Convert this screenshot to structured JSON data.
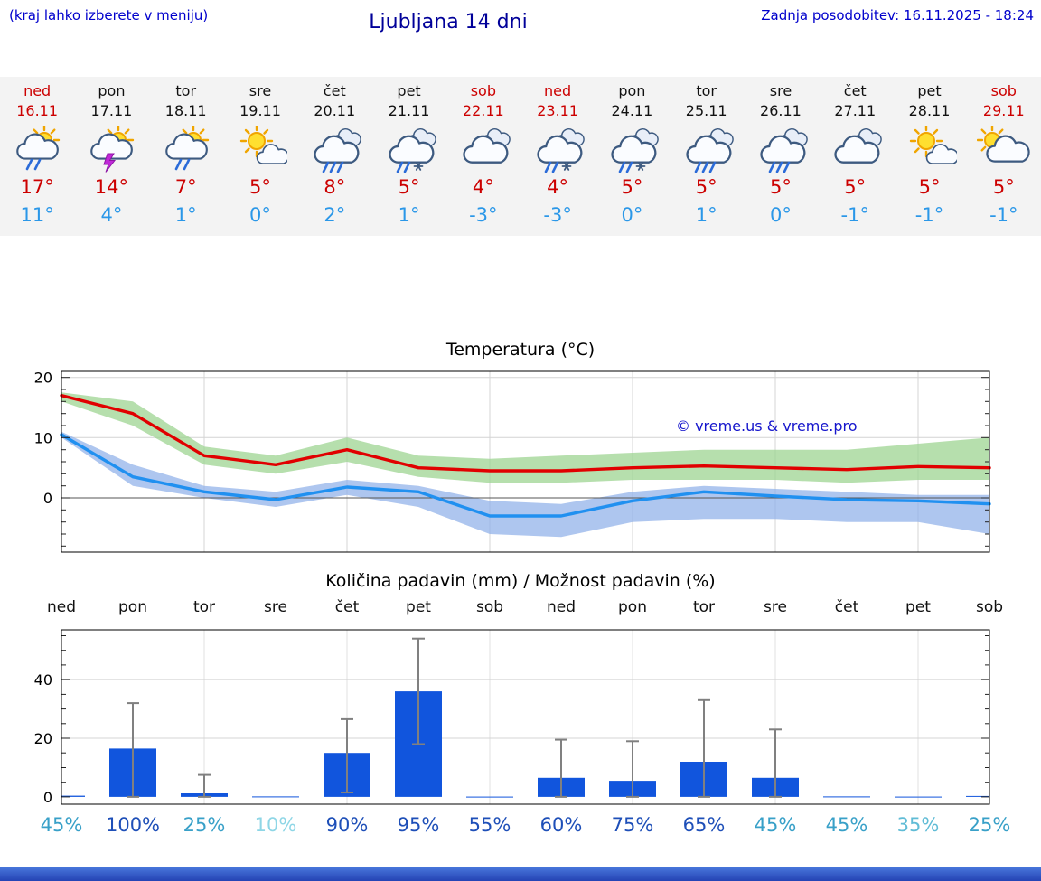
{
  "header": {
    "hint": "(kraj lahko izberete v meniju)",
    "title": "Ljubljana 14 dni",
    "updated": "Zadnja posodobitev: 16.11.2025 - 18:24"
  },
  "days": [
    {
      "name": "ned",
      "date": "16.11",
      "weekend": true,
      "icon": "sun-cloud-rain-icon",
      "hi": "17°",
      "lo": "11°"
    },
    {
      "name": "pon",
      "date": "17.11",
      "weekend": false,
      "icon": "sun-cloud-storm-icon",
      "hi": "14°",
      "lo": "4°"
    },
    {
      "name": "tor",
      "date": "18.11",
      "weekend": false,
      "icon": "sun-cloud-rain-icon",
      "hi": "7°",
      "lo": "1°"
    },
    {
      "name": "sre",
      "date": "19.11",
      "weekend": false,
      "icon": "sun-cloud-icon",
      "hi": "5°",
      "lo": "0°"
    },
    {
      "name": "čet",
      "date": "20.11",
      "weekend": false,
      "icon": "cloud-rain-icon",
      "hi": "8°",
      "lo": "2°"
    },
    {
      "name": "pet",
      "date": "21.11",
      "weekend": false,
      "icon": "cloud-sleet-icon",
      "hi": "5°",
      "lo": "1°"
    },
    {
      "name": "sob",
      "date": "22.11",
      "weekend": true,
      "icon": "clouds-icon",
      "hi": "4°",
      "lo": "-3°"
    },
    {
      "name": "ned",
      "date": "23.11",
      "weekend": true,
      "icon": "cloud-sleet-icon",
      "hi": "4°",
      "lo": "-3°"
    },
    {
      "name": "pon",
      "date": "24.11",
      "weekend": false,
      "icon": "cloud-sleet-icon",
      "hi": "5°",
      "lo": "0°"
    },
    {
      "name": "tor",
      "date": "25.11",
      "weekend": false,
      "icon": "cloud-rain-icon",
      "hi": "5°",
      "lo": "1°"
    },
    {
      "name": "sre",
      "date": "26.11",
      "weekend": false,
      "icon": "cloud-rain-icon",
      "hi": "5°",
      "lo": "0°"
    },
    {
      "name": "čet",
      "date": "27.11",
      "weekend": false,
      "icon": "clouds-icon",
      "hi": "5°",
      "lo": "-1°"
    },
    {
      "name": "pet",
      "date": "28.11",
      "weekend": false,
      "icon": "sun-cloud-icon",
      "hi": "5°",
      "lo": "-1°"
    },
    {
      "name": "sob",
      "date": "29.11",
      "weekend": true,
      "icon": "cloud-sun-icon",
      "hi": "5°",
      "lo": "-1°"
    }
  ],
  "watermark": "© vreme.us & vreme.pro",
  "colors": {
    "header_blue": "#0000cc",
    "title_navy": "#000099",
    "weekend_red": "#cc0000",
    "high_temp_red": "#cc0000",
    "low_temp_blue": "#2a97e8",
    "strip_background": "#f3f3f3",
    "footer_blue": "#2443b4"
  },
  "chart_data": [
    {
      "type": "line",
      "title": "Temperatura (°C)",
      "x_days": [
        "ned",
        "pon",
        "tor",
        "sre",
        "čet",
        "pet",
        "sob",
        "ned",
        "pon",
        "tor",
        "sre",
        "čet",
        "pet",
        "sob"
      ],
      "ylim": [
        -9,
        21
      ],
      "yticks": [
        0,
        10,
        20
      ],
      "grid": true,
      "legend_position": "none",
      "series": [
        {
          "name": "max-temp",
          "color": "#e10000",
          "band_color": "#9ed492",
          "values": [
            17,
            14,
            7,
            5.5,
            8,
            5,
            4.5,
            4.5,
            5,
            5.3,
            5,
            4.7,
            5.2,
            5
          ],
          "band_upper": [
            17.5,
            16,
            8.5,
            7,
            10,
            7,
            6.5,
            7,
            7.5,
            8,
            8,
            8,
            9,
            10
          ],
          "band_lower": [
            16,
            12,
            5.5,
            4,
            6,
            3.5,
            2.5,
            2.5,
            3,
            3,
            3,
            2.5,
            3,
            3
          ]
        },
        {
          "name": "min-temp",
          "color": "#2090f0",
          "band_color": "#93b3ea",
          "values": [
            10.5,
            3.5,
            1,
            -0.3,
            1.8,
            1,
            -3,
            -3,
            -0.5,
            1,
            0.3,
            -0.3,
            -0.5,
            -1
          ],
          "band_upper": [
            11,
            5.5,
            2,
            1,
            3,
            2,
            -0.5,
            -1,
            1,
            2,
            1.5,
            1,
            0.5,
            0.5
          ],
          "band_lower": [
            10,
            2,
            0,
            -1.5,
            0.5,
            -1.5,
            -6,
            -6.5,
            -4,
            -3.5,
            -3.5,
            -4,
            -4,
            -6
          ]
        }
      ]
    },
    {
      "type": "bar",
      "title": "Količina padavin (mm) / Možnost padavin (%)",
      "categories": [
        "ned",
        "pon",
        "tor",
        "sre",
        "čet",
        "pet",
        "sob",
        "ned",
        "pon",
        "tor",
        "sre",
        "čet",
        "pet",
        "sob"
      ],
      "values": [
        0.4,
        16.5,
        1.2,
        0.15,
        15,
        36,
        0.1,
        6.5,
        5.5,
        12,
        6.5,
        0.15,
        0.1,
        0.3
      ],
      "error_low": [
        null,
        0,
        0,
        null,
        1.5,
        18,
        null,
        0,
        0,
        0,
        0,
        null,
        null,
        null
      ],
      "error_high": [
        null,
        32,
        7.5,
        null,
        26.5,
        54,
        null,
        19.5,
        19,
        33,
        23,
        null,
        null,
        null
      ],
      "bar_color": "#1155dd",
      "ylim": [
        0,
        56
      ],
      "yticks": [
        0,
        20,
        40
      ],
      "grid": true,
      "probabilities": [
        {
          "label": "45%",
          "color": "#38a0c8"
        },
        {
          "label": "100%",
          "color": "#1e4fb8"
        },
        {
          "label": "25%",
          "color": "#38a0c8"
        },
        {
          "label": "10%",
          "color": "#8ed6e6"
        },
        {
          "label": "90%",
          "color": "#1e4fb8"
        },
        {
          "label": "95%",
          "color": "#1e4fb8"
        },
        {
          "label": "55%",
          "color": "#1e4fb8"
        },
        {
          "label": "60%",
          "color": "#1e4fb8"
        },
        {
          "label": "75%",
          "color": "#1e4fb8"
        },
        {
          "label": "65%",
          "color": "#1e4fb8"
        },
        {
          "label": "45%",
          "color": "#38a0c8"
        },
        {
          "label": "45%",
          "color": "#38a0c8"
        },
        {
          "label": "35%",
          "color": "#60bcd6"
        },
        {
          "label": "25%",
          "color": "#38a0c8"
        }
      ]
    }
  ]
}
